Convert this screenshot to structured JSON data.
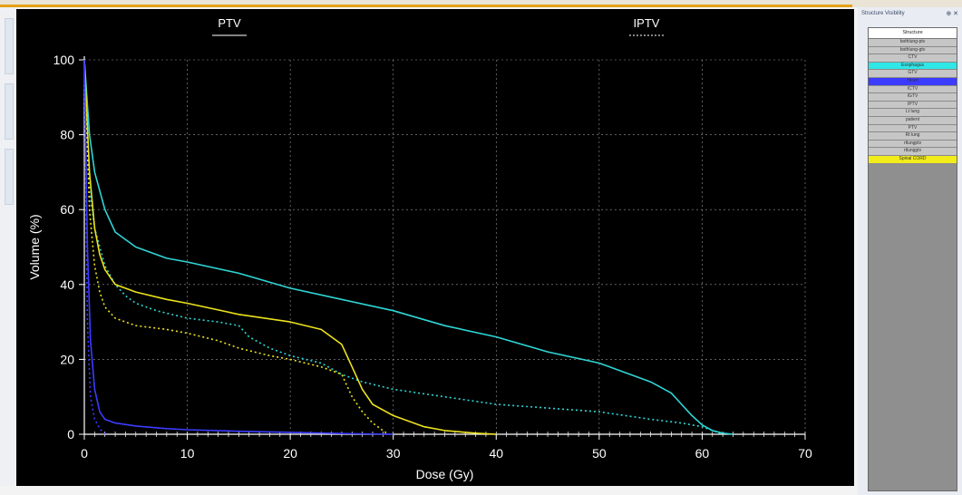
{
  "chart_data": {
    "type": "line",
    "xlabel": "Dose (Gy)",
    "ylabel": "Volume (%)",
    "xlim": [
      0,
      70
    ],
    "ylim": [
      0,
      100
    ],
    "xticks": [
      0,
      10,
      20,
      30,
      40,
      50,
      60,
      70
    ],
    "yticks": [
      0,
      20,
      40,
      60,
      80,
      100
    ],
    "grid": true,
    "legend_position": "top",
    "legend": [
      {
        "label": "PTV",
        "style": "solid"
      },
      {
        "label": "IPTV",
        "style": "dotted"
      }
    ],
    "series": [
      {
        "color": "#2fd6d6",
        "dash": "solid",
        "x": [
          0,
          0.5,
          1,
          2,
          3,
          5,
          8,
          10,
          15,
          20,
          25,
          30,
          35,
          40,
          45,
          50,
          55,
          57,
          58,
          59,
          60,
          61,
          62,
          63
        ],
        "y": [
          100,
          80,
          70,
          60,
          54,
          50,
          47,
          46,
          43,
          39,
          36,
          33,
          29,
          26,
          22,
          19,
          14,
          11,
          8,
          5,
          2.5,
          1,
          0.3,
          0
        ]
      },
      {
        "color": "#2fd6d6",
        "dash": "dotted",
        "x": [
          0,
          0.5,
          1,
          2,
          3,
          4,
          5,
          7,
          10,
          13,
          15,
          16,
          18,
          20,
          23,
          25,
          27,
          30,
          35,
          40,
          45,
          50,
          55,
          58,
          60,
          61,
          62
        ],
        "y": [
          100,
          65,
          55,
          45,
          40,
          37,
          35,
          33,
          31,
          30,
          29,
          26,
          23,
          21,
          19,
          16,
          14,
          12,
          10,
          8,
          7,
          6,
          4,
          3,
          2,
          1,
          0
        ]
      },
      {
        "color": "#ece21c",
        "dash": "solid",
        "x": [
          0,
          0.5,
          1,
          1.5,
          2,
          3,
          5,
          8,
          10,
          15,
          20,
          23,
          25,
          26,
          27,
          28,
          30,
          33,
          35,
          38,
          40
        ],
        "y": [
          100,
          70,
          55,
          48,
          44,
          40,
          38,
          36,
          35,
          32,
          30,
          28,
          24,
          18,
          12,
          8,
          5,
          2,
          1,
          0.3,
          0
        ]
      },
      {
        "color": "#ece21c",
        "dash": "dotted",
        "x": [
          0,
          0.5,
          1,
          1.5,
          2,
          3,
          5,
          8,
          10,
          13,
          15,
          18,
          20,
          23,
          25,
          26,
          27,
          28,
          29,
          29.5
        ],
        "y": [
          100,
          60,
          45,
          38,
          34,
          31,
          29,
          28,
          27,
          25,
          23,
          21,
          20,
          18,
          16,
          10,
          6,
          3,
          1,
          0
        ]
      },
      {
        "color": "#3c3cff",
        "dash": "solid",
        "x": [
          0,
          0.3,
          0.6,
          1,
          1.5,
          2,
          3,
          5,
          8,
          10,
          15,
          20,
          25,
          30
        ],
        "y": [
          100,
          50,
          25,
          12,
          6,
          4,
          3,
          2.2,
          1.5,
          1.2,
          0.8,
          0.5,
          0.2,
          0
        ]
      },
      {
        "color": "#3c3cff",
        "dash": "dotted",
        "x": [
          0,
          0.3,
          0.6,
          1,
          1.5,
          2
        ],
        "y": [
          100,
          30,
          10,
          4,
          1.5,
          0
        ]
      }
    ]
  },
  "panel": {
    "title": "Structure Visibility",
    "pin": "⊕ ✕",
    "header": "Structure",
    "structures": [
      {
        "name": "bothlung-ptv",
        "color": "#c6c6c6"
      },
      {
        "name": "bothlung-gtv",
        "color": "#c6c6c6"
      },
      {
        "name": "CTV",
        "color": "#c6c6c6"
      },
      {
        "name": "Esophagus",
        "color": "#2fe7e7"
      },
      {
        "name": "GTV",
        "color": "#c6c6c6"
      },
      {
        "name": "Heart",
        "color": "#3c3cff"
      },
      {
        "name": "ICTV",
        "color": "#c6c6c6"
      },
      {
        "name": "IGTV",
        "color": "#c6c6c6"
      },
      {
        "name": "IPTV",
        "color": "#c6c6c6"
      },
      {
        "name": "Lt lung",
        "color": "#c6c6c6"
      },
      {
        "name": "patient",
        "color": "#c6c6c6"
      },
      {
        "name": "PTV",
        "color": "#c6c6c6"
      },
      {
        "name": "Rt lung",
        "color": "#c6c6c6"
      },
      {
        "name": "rtlungptv",
        "color": "#c6c6c6"
      },
      {
        "name": "rtlunggtv",
        "color": "#c6c6c6"
      },
      {
        "name": "Spinal CORD",
        "color": "#f2ec1a"
      }
    ]
  }
}
